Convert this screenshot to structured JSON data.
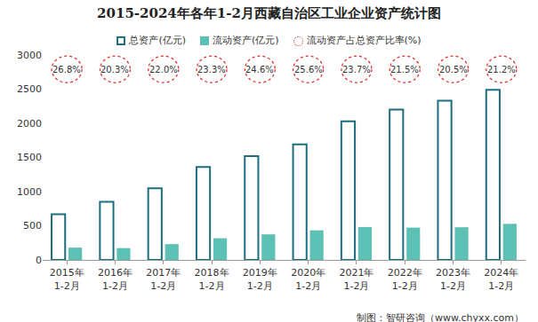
{
  "chart_data": {
    "type": "bar",
    "title": "2015-2024年各年1-2月西藏自治区工业企业资产统计图",
    "categories": [
      "2015年\n1-2月",
      "2016年\n1-2月",
      "2017年\n1-2月",
      "2018年\n1-2月",
      "2019年\n1-2月",
      "2020年\n1-2月",
      "2021年\n1-2月",
      "2022年\n1-2月",
      "2023年\n1-2月",
      "2024年\n1-2月"
    ],
    "series": [
      {
        "name": "总资产(亿元)",
        "color": "#1d6e7e",
        "marker": "outline",
        "values": [
          670,
          850,
          1050,
          1360,
          1520,
          1690,
          2030,
          2200,
          2330,
          2490
        ]
      },
      {
        "name": "流动资产(亿元)",
        "color": "#5cc0b5",
        "values": [
          180,
          173,
          231,
          317,
          374,
          433,
          481,
          473,
          478,
          528
        ]
      },
      {
        "name": "流动资产占总资产比率(%)",
        "type": "label",
        "color": "#e03030",
        "marker": "circle",
        "line_style": "dotted",
        "values": [
          26.8,
          20.3,
          22.0,
          23.3,
          24.6,
          25.6,
          23.7,
          21.5,
          20.5,
          21.2
        ],
        "value_labels": [
          "26.8%",
          "20.3%",
          "22.0%",
          "23.3%",
          "24.6%",
          "25.6%",
          "23.7%",
          "21.5%",
          "20.5%",
          "21.2%"
        ]
      }
    ],
    "ylim": [
      0,
      3000
    ],
    "yticks": [
      0,
      500,
      1000,
      1500,
      2000,
      2500,
      3000
    ],
    "grid": false,
    "legend": "top",
    "source": "制图：智研咨询（www.chyxx.com）"
  }
}
